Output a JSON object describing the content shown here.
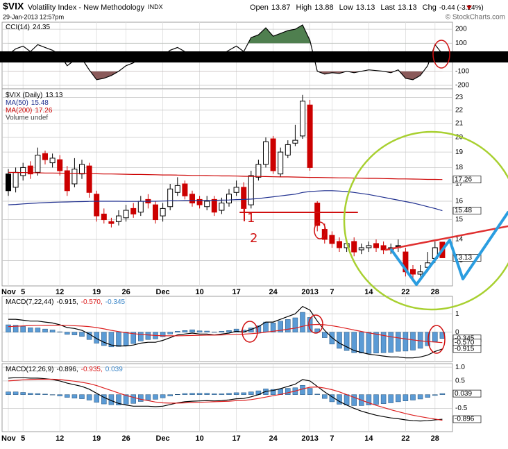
{
  "header": {
    "symbol": "$VIX",
    "name": "Volatility Index - New Methodology",
    "exchange": "INDX",
    "date": "29-Jan-2013 12:57pm",
    "quote": [
      {
        "label": "Open",
        "value": 13.87
      },
      {
        "label": "High",
        "value": 13.88
      },
      {
        "label": "Low",
        "value": 13.13
      },
      {
        "label": "Last",
        "value": 13.13
      },
      {
        "label": "Chg",
        "value": "-0.44 (-3.24%)"
      }
    ],
    "copyright": "© StockCharts.com"
  },
  "chart_data": [
    {
      "type": "line",
      "legend": "CCI(14)",
      "fill": true,
      "fill_colors": [
        "#4f7f4f",
        "#8a5a5a"
      ],
      "series": [
        {
          "name": "CCI(14)",
          "color": "#000000",
          "values": [
            20,
            60,
            80,
            40,
            90,
            70,
            50,
            20,
            -60,
            -20,
            -10,
            -90,
            -160,
            -150,
            -130,
            -100,
            -60,
            -40,
            0,
            10,
            -20,
            10,
            50,
            70,
            40,
            20,
            10,
            30,
            -10,
            20,
            50,
            80,
            40,
            140,
            160,
            210,
            150,
            170,
            190,
            200,
            230,
            120,
            -100,
            -120,
            -110,
            -115,
            -100,
            -110,
            -100,
            -90,
            -95,
            -100,
            -110,
            -90,
            -150,
            -160,
            -130,
            -60,
            90,
            24.35
          ]
        }
      ],
      "ylim": [
        -225,
        250
      ],
      "yticks": [
        200,
        100,
        -100,
        -200
      ],
      "grid": true
    },
    {
      "type": "candlestick",
      "legend": "$VIX (Daily)",
      "volume_label": "Volume undef",
      "log": true,
      "grid": true,
      "colors": {
        "up": "#000000",
        "down": "#cc0000"
      },
      "categories": [
        "Nov",
        null,
        "5",
        null,
        null,
        null,
        null,
        "12",
        null,
        null,
        null,
        null,
        "19",
        null,
        null,
        null,
        "26",
        null,
        null,
        null,
        null,
        "Dec",
        null,
        null,
        null,
        null,
        "10",
        null,
        null,
        null,
        null,
        "17",
        null,
        null,
        null,
        null,
        "24",
        null,
        null,
        null,
        null,
        "2013",
        null,
        null,
        "7",
        null,
        null,
        null,
        null,
        "14",
        null,
        null,
        null,
        null,
        "22",
        null,
        null,
        null,
        "28",
        null
      ],
      "open": [
        17.6,
        16.8,
        17.5,
        18.1,
        17.7,
        18.9,
        18.3,
        18.5,
        17.8,
        17.0,
        17.6,
        18.1,
        16.4,
        15.3,
        14.9,
        14.9,
        15.1,
        15.6,
        15.4,
        16.1,
        15.8,
        15.2,
        15.7,
        16.5,
        17.0,
        16.4,
        16.1,
        15.7,
        16.1,
        15.5,
        15.9,
        16.5,
        16.8,
        15.8,
        17.4,
        18.2,
        19.9,
        17.6,
        18.8,
        19.6,
        20.1,
        22.4,
        15.9,
        14.5,
        14.2,
        13.9,
        13.6,
        13.9,
        13.5,
        13.6,
        13.8,
        13.7,
        13.6,
        13.7,
        13.4,
        12.6,
        12.4,
        12.7,
        13.1,
        13.87
      ],
      "high": [
        17.9,
        18.0,
        18.3,
        18.4,
        19.3,
        19.1,
        18.9,
        18.8,
        18.1,
        18.6,
        18.5,
        18.3,
        16.6,
        15.6,
        15.1,
        15.5,
        15.8,
        15.9,
        16.3,
        16.4,
        16.0,
        15.9,
        17.0,
        17.4,
        17.2,
        16.6,
        16.3,
        16.3,
        16.3,
        16.2,
        16.7,
        17.2,
        17.1,
        17.8,
        18.5,
        20.0,
        20.1,
        19.3,
        19.8,
        20.9,
        23.2,
        22.8,
        16.0,
        14.8,
        14.4,
        14.1,
        14.0,
        14.1,
        13.8,
        13.9,
        14.0,
        13.9,
        13.8,
        14.0,
        13.6,
        12.8,
        12.8,
        13.4,
        13.9,
        13.88
      ],
      "low": [
        16.3,
        16.5,
        17.2,
        17.3,
        17.5,
        18.2,
        18.0,
        17.5,
        16.3,
        16.8,
        17.3,
        16.2,
        14.9,
        14.8,
        14.6,
        14.7,
        14.9,
        15.1,
        15.2,
        15.6,
        14.8,
        14.9,
        15.5,
        16.3,
        16.1,
        15.7,
        15.6,
        15.5,
        15.2,
        15.3,
        15.7,
        16.3,
        15.4,
        15.6,
        17.2,
        18.0,
        17.6,
        17.4,
        18.6,
        19.4,
        19.9,
        17.8,
        14.4,
        13.8,
        13.6,
        13.4,
        13.4,
        13.2,
        13.3,
        13.4,
        13.4,
        13.3,
        13.3,
        13.4,
        12.3,
        12.2,
        12.3,
        12.5,
        12.9,
        13.13
      ],
      "close": [
        16.6,
        17.7,
        18.0,
        17.6,
        18.8,
        18.5,
        18.6,
        17.8,
        16.6,
        17.9,
        18.2,
        16.5,
        15.2,
        15.0,
        14.8,
        15.2,
        15.5,
        15.3,
        16.0,
        15.9,
        15.0,
        15.6,
        16.7,
        16.9,
        16.3,
        15.9,
        15.8,
        16.0,
        15.4,
        15.9,
        16.4,
        16.8,
        15.6,
        17.5,
        18.2,
        19.7,
        17.8,
        19.0,
        19.5,
        19.8,
        22.7,
        18.0,
        14.7,
        14.0,
        13.8,
        13.6,
        13.8,
        13.4,
        13.6,
        13.7,
        13.6,
        13.5,
        13.5,
        13.6,
        12.5,
        12.4,
        12.5,
        12.9,
        13.6,
        13.13
      ],
      "series": [
        {
          "name": "MA(50)",
          "color": "#1f2f8f",
          "values": [
            15.8,
            15.82,
            15.85,
            15.88,
            15.9,
            15.92,
            15.94,
            15.95,
            15.96,
            15.97,
            15.98,
            15.99,
            16.0,
            16.0,
            16.0,
            16.0,
            15.99,
            15.99,
            15.99,
            16.0,
            16.0,
            16.01,
            16.02,
            16.03,
            16.04,
            16.04,
            16.05,
            16.05,
            16.05,
            16.06,
            16.07,
            16.09,
            16.1,
            16.12,
            16.15,
            16.2,
            16.25,
            16.3,
            16.35,
            16.4,
            16.5,
            16.55,
            16.58,
            16.6,
            16.6,
            16.58,
            16.55,
            16.5,
            16.44,
            16.38,
            16.3,
            16.22,
            16.14,
            16.06,
            15.98,
            15.9,
            15.8,
            15.7,
            15.6,
            15.48
          ]
        },
        {
          "name": "MA(200)",
          "color": "#cc0000",
          "values": [
            17.7,
            17.69,
            17.69,
            17.68,
            17.67,
            17.66,
            17.66,
            17.65,
            17.64,
            17.63,
            17.63,
            17.62,
            17.61,
            17.6,
            17.6,
            17.59,
            17.58,
            17.57,
            17.57,
            17.56,
            17.55,
            17.54,
            17.54,
            17.53,
            17.52,
            17.51,
            17.51,
            17.5,
            17.49,
            17.48,
            17.48,
            17.47,
            17.46,
            17.45,
            17.45,
            17.44,
            17.43,
            17.42,
            17.42,
            17.41,
            17.4,
            17.39,
            17.39,
            17.38,
            17.37,
            17.36,
            17.36,
            17.35,
            17.34,
            17.33,
            17.33,
            17.32,
            17.31,
            17.3,
            17.3,
            17.29,
            17.28,
            17.27,
            17.27,
            17.26
          ]
        }
      ],
      "ylim": [
        11.9,
        23.7
      ],
      "yticks": [
        13,
        14,
        15,
        16,
        17,
        18,
        19,
        20,
        21,
        22,
        23
      ],
      "annotations": [
        "1",
        "2"
      ]
    },
    {
      "type": "line",
      "legend": "MACD(7,22,44)",
      "legend_values": [
        "-0.915,",
        "-0.570,",
        "-0.345"
      ],
      "box_labels": [
        "-0.915",
        "-0.570",
        "-0.345"
      ],
      "grid": true,
      "series": [
        {
          "name": "MACD",
          "color": "#000000",
          "values": [
            0.7,
            0.7,
            0.65,
            0.6,
            0.6,
            0.55,
            0.5,
            0.4,
            0.25,
            0.2,
            0.1,
            -0.1,
            -0.35,
            -0.55,
            -0.7,
            -0.75,
            -0.75,
            -0.7,
            -0.6,
            -0.55,
            -0.55,
            -0.45,
            -0.3,
            -0.15,
            -0.1,
            -0.05,
            -0.1,
            -0.1,
            -0.15,
            -0.1,
            -0.05,
            0.05,
            0.0,
            0.15,
            0.3,
            0.55,
            0.55,
            0.7,
            0.85,
            1.0,
            1.4,
            1.2,
            0.6,
            0.1,
            -0.3,
            -0.6,
            -0.8,
            -1.0,
            -1.1,
            -1.2,
            -1.25,
            -1.3,
            -1.35,
            -1.35,
            -1.4,
            -1.4,
            -1.35,
            -1.25,
            -1.05,
            -0.915
          ]
        },
        {
          "name": "Signal",
          "color": "#dd2020",
          "values": [
            0.3,
            0.32,
            0.34,
            0.36,
            0.37,
            0.38,
            0.38,
            0.38,
            0.37,
            0.35,
            0.33,
            0.3,
            0.25,
            0.18,
            0.1,
            0.03,
            -0.03,
            -0.08,
            -0.12,
            -0.15,
            -0.18,
            -0.2,
            -0.2,
            -0.2,
            -0.19,
            -0.18,
            -0.17,
            -0.16,
            -0.16,
            -0.15,
            -0.14,
            -0.12,
            -0.11,
            -0.08,
            -0.05,
            0.0,
            0.05,
            0.1,
            0.16,
            0.22,
            0.32,
            0.4,
            0.42,
            0.4,
            0.35,
            0.28,
            0.2,
            0.12,
            0.04,
            -0.04,
            -0.11,
            -0.18,
            -0.25,
            -0.31,
            -0.37,
            -0.42,
            -0.47,
            -0.51,
            -0.54,
            -0.57
          ]
        },
        {
          "name": "Histogram",
          "type": "bar",
          "color": "#5b9bd5",
          "values": [
            0.4,
            0.38,
            0.31,
            0.24,
            0.23,
            0.17,
            0.12,
            0.02,
            -0.12,
            -0.15,
            -0.23,
            -0.4,
            -0.6,
            -0.73,
            -0.8,
            -0.78,
            -0.72,
            -0.62,
            -0.48,
            -0.4,
            -0.37,
            -0.25,
            -0.1,
            0.05,
            0.09,
            0.13,
            0.07,
            0.06,
            0.01,
            0.05,
            0.09,
            0.17,
            0.11,
            0.23,
            0.35,
            0.55,
            0.5,
            0.6,
            0.69,
            0.78,
            1.08,
            0.8,
            0.18,
            -0.3,
            -0.65,
            -0.88,
            -1.0,
            -1.12,
            -1.14,
            -1.16,
            -1.14,
            -1.12,
            -1.1,
            -1.04,
            -1.03,
            -0.98,
            -0.88,
            -0.74,
            -0.51,
            -0.345
          ]
        }
      ],
      "ylim": [
        -1.6,
        1.95
      ],
      "yticks": [
        1,
        0
      ]
    },
    {
      "type": "line",
      "legend": "MACD(12,26,9)",
      "legend_values": [
        "-0.896,",
        "-0.935,",
        "0.039"
      ],
      "grid": true,
      "series": [
        {
          "name": "MACD",
          "color": "#000000",
          "values": [
            0.6,
            0.62,
            0.62,
            0.6,
            0.6,
            0.58,
            0.55,
            0.5,
            0.42,
            0.36,
            0.3,
            0.2,
            0.05,
            -0.1,
            -0.22,
            -0.32,
            -0.38,
            -0.42,
            -0.42,
            -0.42,
            -0.44,
            -0.42,
            -0.36,
            -0.3,
            -0.26,
            -0.24,
            -0.23,
            -0.22,
            -0.23,
            -0.22,
            -0.19,
            -0.15,
            -0.14,
            -0.08,
            0.0,
            0.12,
            0.15,
            0.22,
            0.3,
            0.38,
            0.55,
            0.5,
            0.3,
            0.1,
            -0.08,
            -0.25,
            -0.38,
            -0.5,
            -0.6,
            -0.68,
            -0.75,
            -0.8,
            -0.85,
            -0.88,
            -0.92,
            -0.95,
            -0.96,
            -0.95,
            -0.92,
            -0.896
          ]
        },
        {
          "name": "Signal",
          "color": "#dd2020",
          "values": [
            0.5,
            0.52,
            0.54,
            0.55,
            0.56,
            0.56,
            0.56,
            0.55,
            0.52,
            0.49,
            0.45,
            0.4,
            0.33,
            0.24,
            0.15,
            0.06,
            -0.03,
            -0.1,
            -0.17,
            -0.22,
            -0.27,
            -0.3,
            -0.31,
            -0.31,
            -0.3,
            -0.29,
            -0.28,
            -0.27,
            -0.26,
            -0.25,
            -0.24,
            -0.22,
            -0.21,
            -0.18,
            -0.14,
            -0.09,
            -0.04,
            0.01,
            0.07,
            0.13,
            0.21,
            0.27,
            0.28,
            0.24,
            0.18,
            0.1,
            0.0,
            -0.1,
            -0.2,
            -0.3,
            -0.39,
            -0.47,
            -0.55,
            -0.62,
            -0.69,
            -0.75,
            -0.8,
            -0.85,
            -0.89,
            -0.935
          ]
        },
        {
          "name": "Histogram",
          "type": "bar",
          "color": "#5b9bd5",
          "values": [
            0.1,
            0.1,
            0.08,
            0.05,
            0.04,
            0.02,
            -0.01,
            -0.05,
            -0.1,
            -0.13,
            -0.15,
            -0.2,
            -0.28,
            -0.34,
            -0.37,
            -0.38,
            -0.35,
            -0.32,
            -0.25,
            -0.2,
            -0.17,
            -0.12,
            -0.05,
            0.01,
            0.04,
            0.05,
            0.05,
            0.05,
            0.03,
            0.03,
            0.05,
            0.07,
            0.07,
            0.1,
            0.14,
            0.21,
            0.19,
            0.21,
            0.23,
            0.25,
            0.34,
            0.23,
            0.02,
            -0.14,
            -0.26,
            -0.35,
            -0.38,
            -0.4,
            -0.4,
            -0.38,
            -0.36,
            -0.33,
            -0.3,
            -0.26,
            -0.23,
            -0.2,
            -0.16,
            -0.1,
            -0.03,
            0.039
          ]
        }
      ],
      "ylim": [
        -1.35,
        1.13
      ],
      "yticks": [
        {
          "value": 1,
          "label": "1.0"
        },
        0.5,
        -0.5
      ]
    }
  ]
}
